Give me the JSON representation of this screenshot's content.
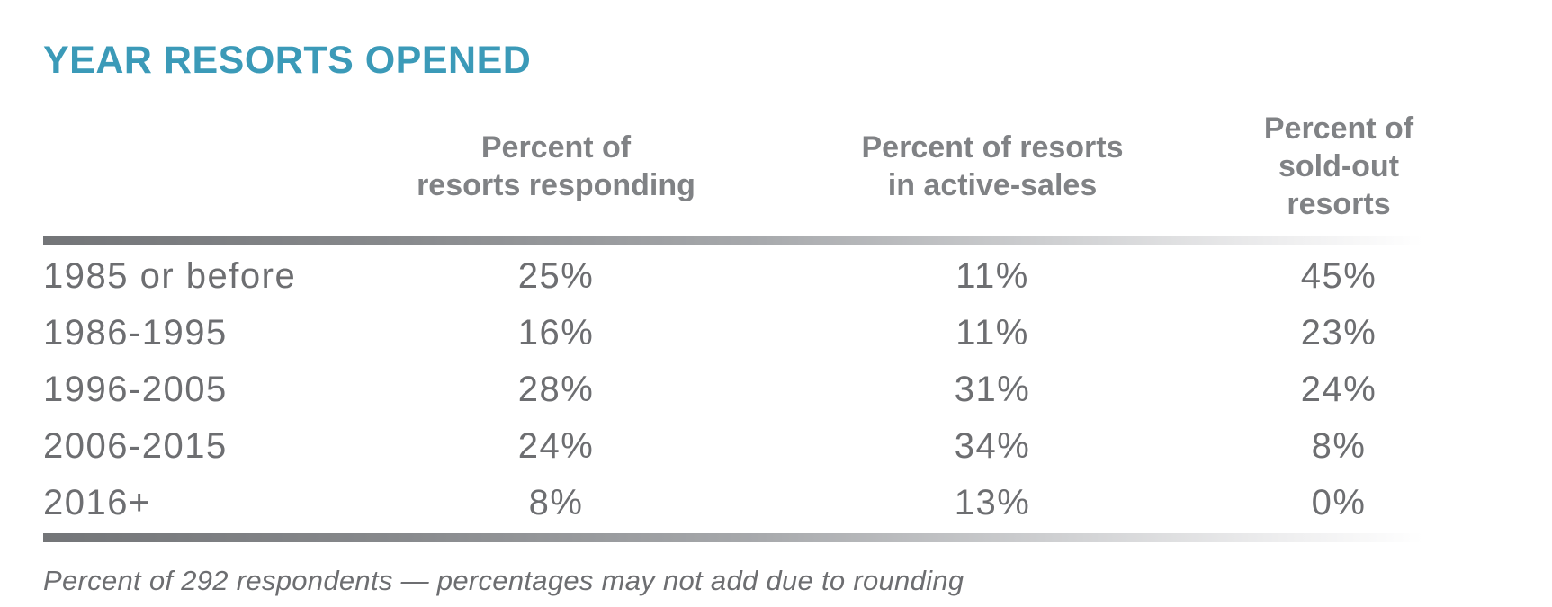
{
  "page": {
    "title": "YEAR RESORTS OPENED",
    "footnote": "Percent of 292 respondents — percentages may not add due to rounding"
  },
  "table": {
    "columns": [
      {
        "line1": "Percent of",
        "line2": "resorts responding"
      },
      {
        "line1": "Percent of resorts",
        "line2": "in active-sales"
      },
      {
        "line1": "Percent of",
        "line2": "sold-out resorts"
      }
    ],
    "rows": [
      [
        "1985 or before",
        "25%",
        "11%",
        "45%"
      ],
      [
        "1986-1995",
        "16%",
        "11%",
        "23%"
      ],
      [
        "1996-2005",
        "28%",
        "31%",
        "24%"
      ],
      [
        "2006-2015",
        "24%",
        "34%",
        "8%"
      ],
      [
        "2016+",
        "8%",
        "13%",
        "0%"
      ]
    ]
  },
  "colors": {
    "title_teal": "#3b9ab8",
    "header_gray": "#808285",
    "body_gray": "#6d6e71",
    "rule_gradient_start": "#737578",
    "rule_gradient_end": "#ffffff"
  },
  "chart_data": {
    "type": "table",
    "title": "YEAR RESORTS OPENED",
    "categories": [
      "1985 or before",
      "1986-1995",
      "1996-2005",
      "2006-2015",
      "2016+"
    ],
    "series": [
      {
        "name": "Percent of resorts responding",
        "values": [
          25,
          16,
          28,
          24,
          8
        ]
      },
      {
        "name": "Percent of resorts in active-sales",
        "values": [
          11,
          11,
          31,
          34,
          13
        ]
      },
      {
        "name": "Percent of sold-out resorts",
        "values": [
          45,
          23,
          24,
          8,
          0
        ]
      }
    ],
    "unit": "%",
    "footnote": "Percent of 292 respondents — percentages may not add due to rounding",
    "layout": {
      "grid": false,
      "legend_position": "column-headers"
    }
  }
}
